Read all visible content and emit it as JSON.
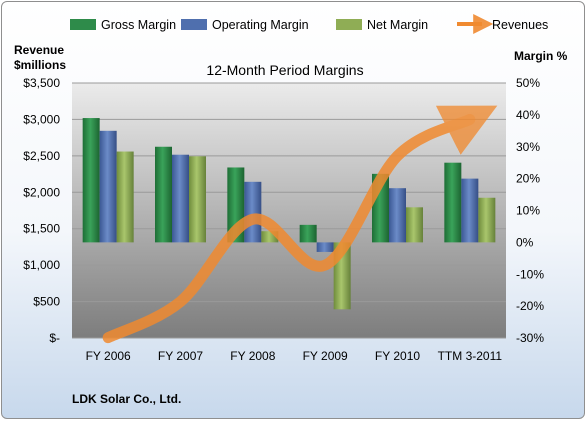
{
  "chart_data": {
    "type": "bar",
    "title": "12-Month Period Margins",
    "left_axis_label_line1": "Revenue",
    "left_axis_label_line2": "$millions",
    "right_axis_label": "Margin %",
    "company": "LDK Solar Co., Ltd.",
    "categories": [
      "FY 2006",
      "FY 2007",
      "FY 2008",
      "FY 2009",
      "FY 2010",
      "TTM 3-2011"
    ],
    "left_ticks": [
      "$-",
      "$500",
      "$1,000",
      "$1,500",
      "$2,000",
      "$2,500",
      "$3,000",
      "$3,500"
    ],
    "right_ticks": [
      "-30%",
      "-20%",
      "-10%",
      "0%",
      "10%",
      "20%",
      "30%",
      "40%",
      "50%"
    ],
    "left_ylim": [
      0,
      3500
    ],
    "right_ylim": [
      -30,
      50
    ],
    "series": [
      {
        "name": "Gross Margin",
        "color": "#2e8b4a",
        "axis": "right",
        "values": [
          39,
          30,
          23.5,
          5.5,
          21.5,
          25
        ]
      },
      {
        "name": "Operating Margin",
        "color": "#4f6fae",
        "axis": "right",
        "values": [
          35,
          27.5,
          19,
          -3,
          17,
          20
        ]
      },
      {
        "name": "Net Margin",
        "color": "#8fad55",
        "axis": "right",
        "values": [
          28.5,
          27,
          3.5,
          -21,
          11,
          14
        ]
      },
      {
        "name": "Revenues",
        "color": "#f08a30",
        "axis": "left",
        "type": "line",
        "values": [
          5,
          500,
          1630,
          1000,
          2500,
          3000
        ]
      }
    ],
    "legend_position": "top",
    "grid": true
  }
}
